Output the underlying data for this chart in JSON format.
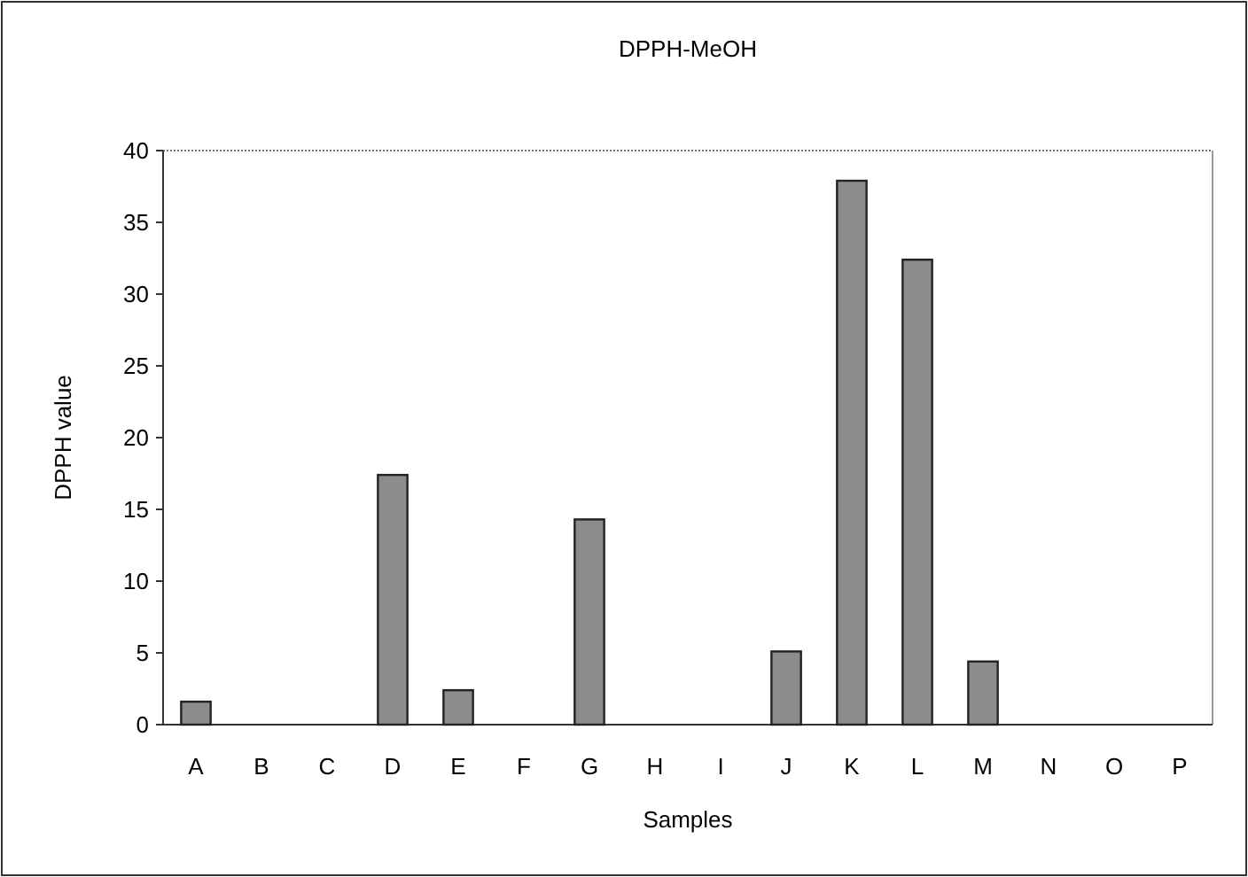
{
  "chart_data": {
    "type": "bar",
    "title": "DPPH-MeOH",
    "xlabel": "Samples",
    "ylabel": "DPPH value",
    "categories": [
      "A",
      "B",
      "C",
      "D",
      "E",
      "F",
      "G",
      "H",
      "I",
      "J",
      "K",
      "L",
      "M",
      "N",
      "O",
      "P"
    ],
    "values": [
      1.6,
      0,
      0,
      17.4,
      2.4,
      0,
      14.3,
      0,
      0,
      5.1,
      37.9,
      32.4,
      4.4,
      0,
      0,
      0
    ],
    "color": "#8c8c8c",
    "ylim": [
      0,
      40
    ],
    "yticks": [
      0,
      5,
      10,
      15,
      20,
      25,
      30,
      35,
      40
    ],
    "grid": false
  }
}
